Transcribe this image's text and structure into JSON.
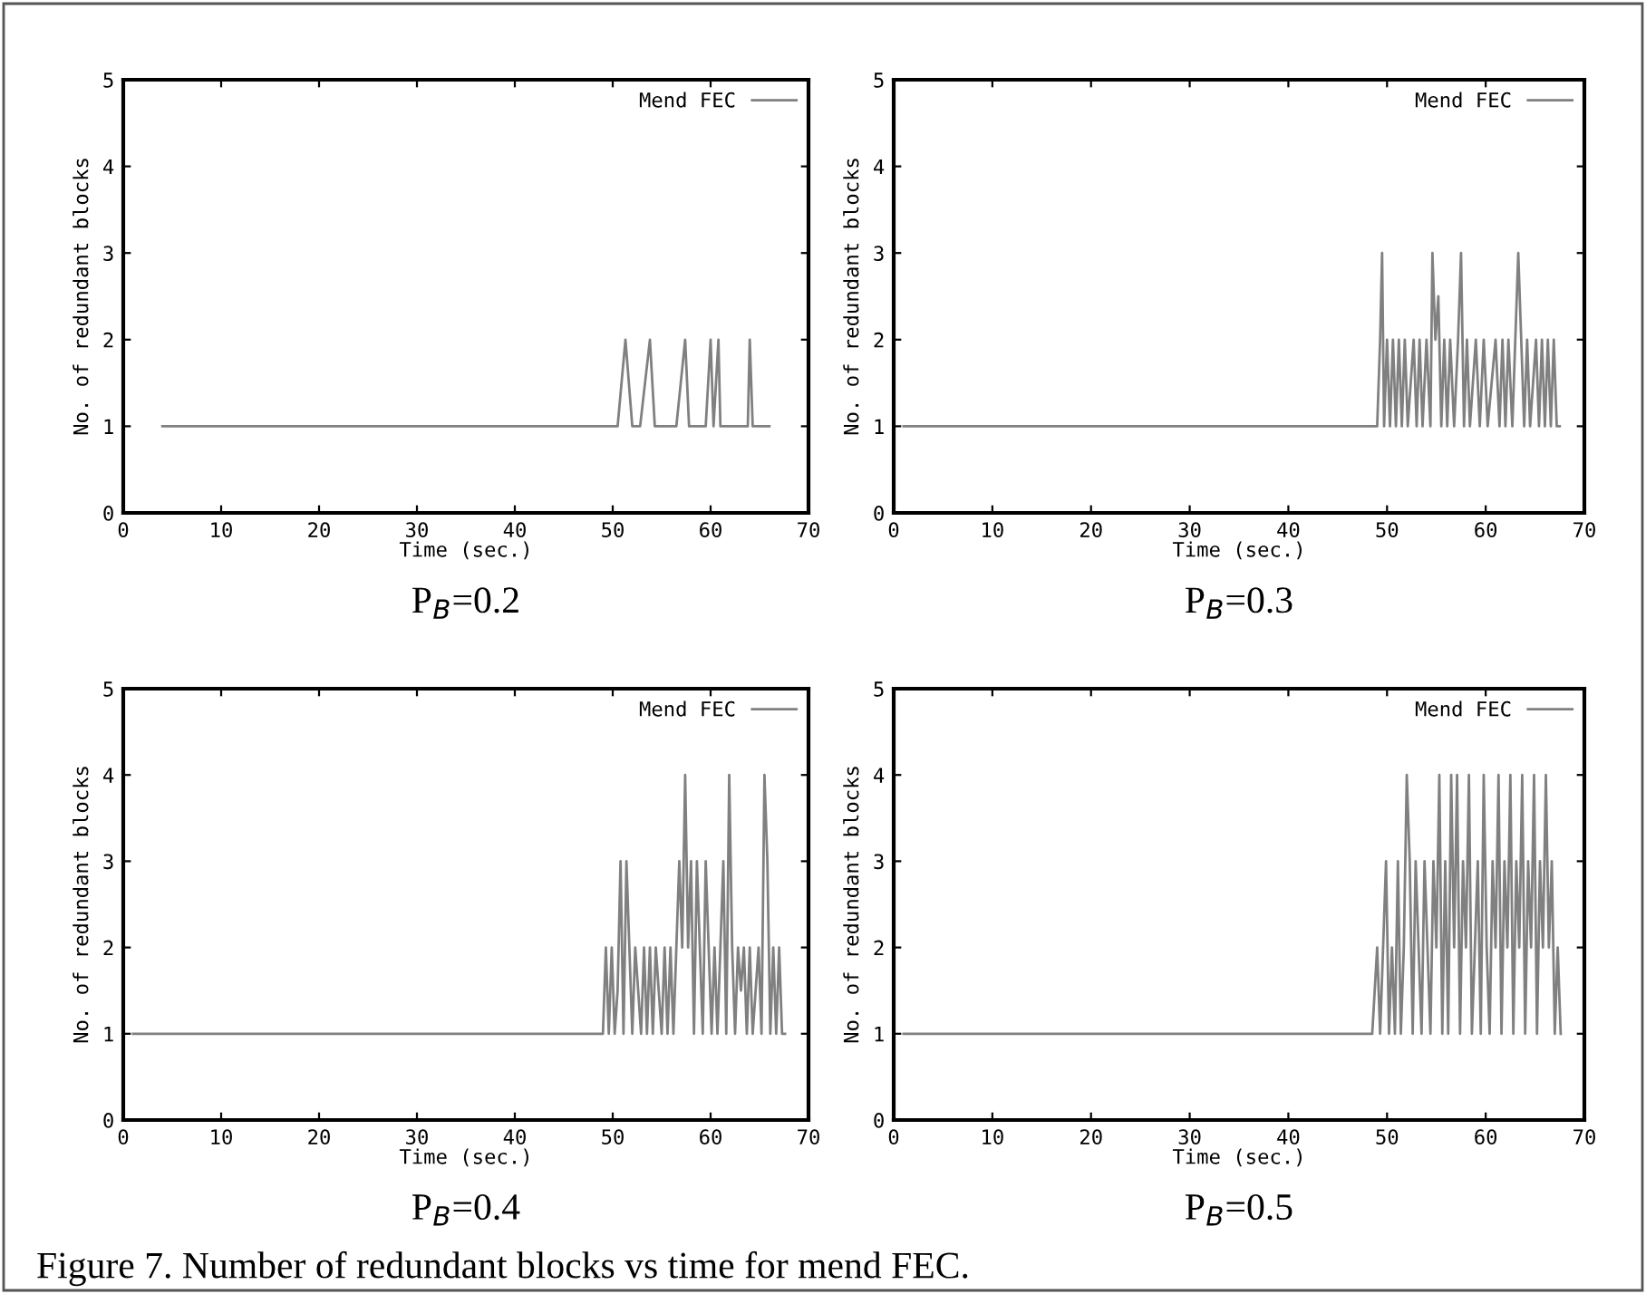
{
  "chart_data": [
    {
      "type": "line",
      "xlabel": "Time (sec.)",
      "ylabel": "No. of redundant blocks",
      "subtitle": "P$_{B}$=0.2",
      "xlim": [
        0,
        70
      ],
      "xticks": [
        0,
        10,
        20,
        30,
        40,
        50,
        60,
        70
      ],
      "ylim": [
        0,
        5
      ],
      "yticks": [
        0,
        1,
        2,
        3,
        4,
        5
      ],
      "grid": false,
      "legend": "top right",
      "marker": "none",
      "line_style": "solid",
      "series": [
        {
          "name": "Mend FEC",
          "color": "#808080",
          "x": [
            4,
            50.5,
            51.3,
            52,
            52.8,
            53.8,
            54.3,
            56.5,
            57.4,
            57.8,
            59.5,
            60,
            60.3,
            60.8,
            61,
            63.8,
            64,
            64.3,
            66
          ],
          "values": [
            1,
            1,
            2,
            1,
            1,
            2,
            1,
            1,
            2,
            1,
            1,
            2,
            1,
            2,
            1,
            1,
            2,
            1,
            1
          ]
        }
      ]
    },
    {
      "type": "line",
      "xlabel": "Time (sec.)",
      "ylabel": "No. of redundant blocks",
      "subtitle": "P$_{B}$=0.3",
      "xlim": [
        0,
        70
      ],
      "xticks": [
        0,
        10,
        20,
        30,
        40,
        50,
        60,
        70
      ],
      "ylim": [
        0,
        5
      ],
      "yticks": [
        0,
        1,
        2,
        3,
        4,
        5
      ],
      "grid": false,
      "legend": "top right",
      "marker": "none",
      "line_style": "solid",
      "series": [
        {
          "name": "Mend FEC",
          "color": "#808080",
          "x": [
            1,
            49,
            49.3,
            49.5,
            49.7,
            50,
            50.3,
            50.6,
            50.9,
            51.2,
            51.5,
            51.8,
            52.1,
            52.4,
            52.7,
            53,
            53.3,
            53.6,
            54,
            54.4,
            54.6,
            54.9,
            55.2,
            55.5,
            55.8,
            56.1,
            56.4,
            56.8,
            57.2,
            57.5,
            57.8,
            58.1,
            58.4,
            58.7,
            59,
            59.4,
            59.8,
            60.2,
            60.6,
            61,
            61.4,
            61.7,
            62,
            62.3,
            62.7,
            63,
            63.3,
            63.6,
            63.9,
            64.2,
            64.5,
            64.8,
            65.1,
            65.4,
            65.7,
            66,
            66.3,
            66.6,
            66.9,
            67.2,
            67.5
          ],
          "values": [
            1,
            1,
            2,
            3,
            1,
            2,
            1,
            2,
            1,
            2,
            1,
            2,
            1,
            1.5,
            2,
            1,
            2,
            1,
            2,
            1,
            3,
            2,
            2.5,
            1,
            2,
            1,
            2,
            1,
            2,
            3,
            1,
            2,
            1,
            1.5,
            2,
            1,
            2,
            1,
            1.5,
            2,
            1,
            2,
            1,
            2,
            1,
            2,
            3,
            2,
            1,
            2,
            1,
            1.5,
            2,
            1,
            2,
            1,
            2,
            1,
            2,
            1,
            1
          ]
        }
      ]
    },
    {
      "type": "line",
      "xlabel": "Time (sec.)",
      "ylabel": "No. of redundant blocks",
      "subtitle": "P$_{B}$=0.4",
      "xlim": [
        0,
        70
      ],
      "xticks": [
        0,
        10,
        20,
        30,
        40,
        50,
        60,
        70
      ],
      "ylim": [
        0,
        5
      ],
      "yticks": [
        0,
        1,
        2,
        3,
        4,
        5
      ],
      "grid": false,
      "legend": "top right",
      "marker": "none",
      "line_style": "solid",
      "series": [
        {
          "name": "Mend FEC",
          "color": "#808080",
          "x": [
            1,
            49,
            49.3,
            49.6,
            49.9,
            50.2,
            50.5,
            50.8,
            51.1,
            51.4,
            51.7,
            52,
            52.3,
            52.6,
            52.9,
            53.2,
            53.5,
            53.8,
            54.1,
            54.4,
            54.7,
            55,
            55.3,
            55.6,
            55.9,
            56.2,
            56.5,
            56.8,
            57.1,
            57.4,
            57.7,
            58,
            58.3,
            58.6,
            58.9,
            59.2,
            59.5,
            59.8,
            60.1,
            60.4,
            60.7,
            61,
            61.3,
            61.6,
            61.9,
            62.2,
            62.5,
            62.8,
            63.1,
            63.4,
            63.7,
            64,
            64.3,
            64.6,
            64.9,
            65.2,
            65.5,
            65.8,
            66.1,
            66.4,
            66.7,
            67,
            67.3,
            67.6
          ],
          "values": [
            1,
            1,
            2,
            1,
            2,
            1,
            1.5,
            3,
            1,
            3,
            2,
            1,
            2,
            1.5,
            1,
            2,
            1,
            2,
            1,
            2,
            1.5,
            1,
            2,
            1,
            2,
            1,
            2,
            3,
            2,
            4,
            2,
            3,
            1,
            3,
            2,
            1,
            3,
            2,
            1,
            2,
            1,
            2,
            3,
            1,
            4,
            2,
            1,
            2,
            1.5,
            2,
            1,
            2,
            1,
            1.5,
            2,
            1,
            4,
            3,
            1,
            2,
            1,
            2,
            1,
            1
          ]
        }
      ]
    },
    {
      "type": "line",
      "xlabel": "Time (sec.)",
      "ylabel": "No. of redundant blocks",
      "subtitle": "P$_{B}$=0.5",
      "xlim": [
        0,
        70
      ],
      "xticks": [
        0,
        10,
        20,
        30,
        40,
        50,
        60,
        70
      ],
      "ylim": [
        0,
        5
      ],
      "yticks": [
        0,
        1,
        2,
        3,
        4,
        5
      ],
      "grid": false,
      "legend": "top right",
      "marker": "none",
      "line_style": "solid",
      "annotations": [
        "Figure 7. Number of redundant blocks vs time for mend FEC."
      ],
      "series": [
        {
          "name": "Mend FEC",
          "color": "#808080",
          "x": [
            1,
            48.5,
            49,
            49.3,
            49.6,
            49.9,
            50.2,
            50.5,
            50.8,
            51.1,
            51.4,
            51.7,
            52,
            52.3,
            52.6,
            52.9,
            53.2,
            53.5,
            53.8,
            54.1,
            54.4,
            54.7,
            55,
            55.3,
            55.6,
            55.9,
            56.2,
            56.5,
            56.8,
            57.1,
            57.4,
            57.7,
            58,
            58.3,
            58.6,
            58.9,
            59.2,
            59.5,
            59.8,
            60.1,
            60.4,
            60.7,
            61,
            61.3,
            61.6,
            61.9,
            62.2,
            62.5,
            62.8,
            63.1,
            63.4,
            63.7,
            64,
            64.3,
            64.6,
            64.9,
            65.2,
            65.5,
            65.8,
            66.1,
            66.4,
            66.7,
            67,
            67.3,
            67.6
          ],
          "values": [
            1,
            1,
            2,
            1,
            2,
            3,
            1,
            2,
            1,
            3,
            1,
            2,
            4,
            3,
            1,
            3,
            2,
            1,
            3,
            2,
            1,
            3,
            2,
            4,
            1,
            3,
            1,
            4,
            2,
            4,
            1,
            3,
            2,
            4,
            1,
            2,
            3,
            1,
            4,
            2,
            1,
            3,
            2,
            4,
            1,
            3,
            2,
            4,
            1,
            3,
            2,
            4,
            1,
            3,
            2,
            4,
            1,
            3,
            2,
            4,
            2,
            3,
            1,
            2,
            1
          ]
        }
      ]
    }
  ]
}
